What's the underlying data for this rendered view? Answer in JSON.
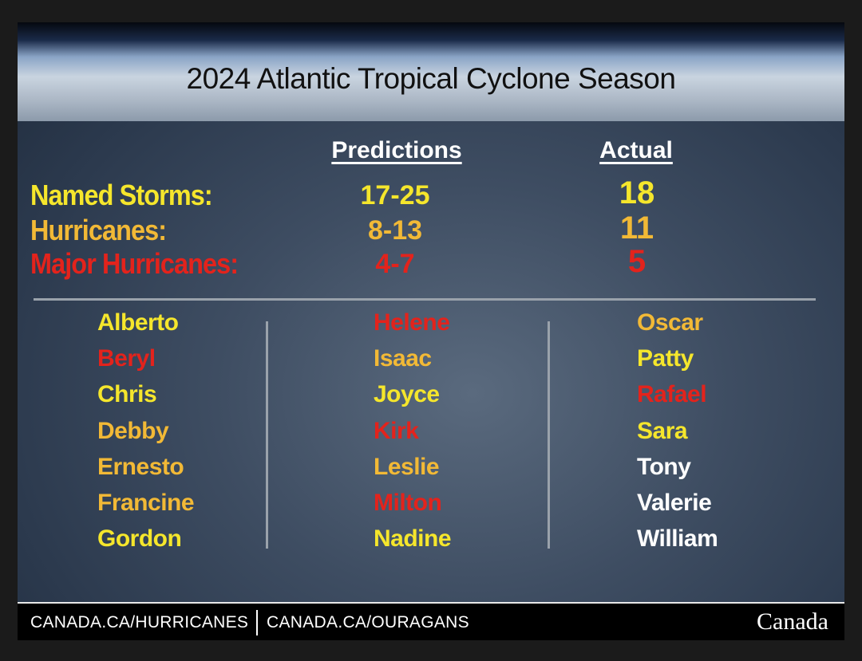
{
  "header": {
    "title": "2024 Atlantic Tropical Cyclone Season"
  },
  "columns": {
    "predictions": "Predictions",
    "actual": "Actual"
  },
  "stats": [
    {
      "label": "Named Storms:",
      "prediction": "17-25",
      "actual": 18,
      "color": "#f5e62c"
    },
    {
      "label": "Hurricanes:",
      "prediction": "8-13",
      "actual": 11,
      "color": "#f2b936"
    },
    {
      "label": "Major Hurricanes:",
      "prediction": "4-7",
      "actual": 5,
      "color": "#e3231c"
    }
  ],
  "names": [
    [
      {
        "name": "Alberto",
        "color": "#f5e62c"
      },
      {
        "name": "Beryl",
        "color": "#e3231c"
      },
      {
        "name": "Chris",
        "color": "#f5e62c"
      },
      {
        "name": "Debby",
        "color": "#f2b936"
      },
      {
        "name": "Ernesto",
        "color": "#f2b936"
      },
      {
        "name": "Francine",
        "color": "#f2b936"
      },
      {
        "name": "Gordon",
        "color": "#f5e62c"
      }
    ],
    [
      {
        "name": "Helene",
        "color": "#e3231c"
      },
      {
        "name": "Isaac",
        "color": "#f2b936"
      },
      {
        "name": "Joyce",
        "color": "#f5e62c"
      },
      {
        "name": "Kirk",
        "color": "#e3231c"
      },
      {
        "name": "Leslie",
        "color": "#f2b936"
      },
      {
        "name": "Milton",
        "color": "#e3231c"
      },
      {
        "name": "Nadine",
        "color": "#f5e62c"
      }
    ],
    [
      {
        "name": "Oscar",
        "color": "#f2b936"
      },
      {
        "name": "Patty",
        "color": "#f5e62c"
      },
      {
        "name": "Rafael",
        "color": "#e3231c"
      },
      {
        "name": "Sara",
        "color": "#f5e62c"
      },
      {
        "name": "Tony",
        "color": "#ffffff"
      },
      {
        "name": "Valerie",
        "color": "#ffffff"
      },
      {
        "name": "William",
        "color": "#ffffff"
      }
    ]
  ],
  "footer": {
    "link_en": "CANADA.CA/HURRICANES",
    "link_fr": "CANADA.CA/OURAGANS",
    "wordmark": "Canada"
  }
}
